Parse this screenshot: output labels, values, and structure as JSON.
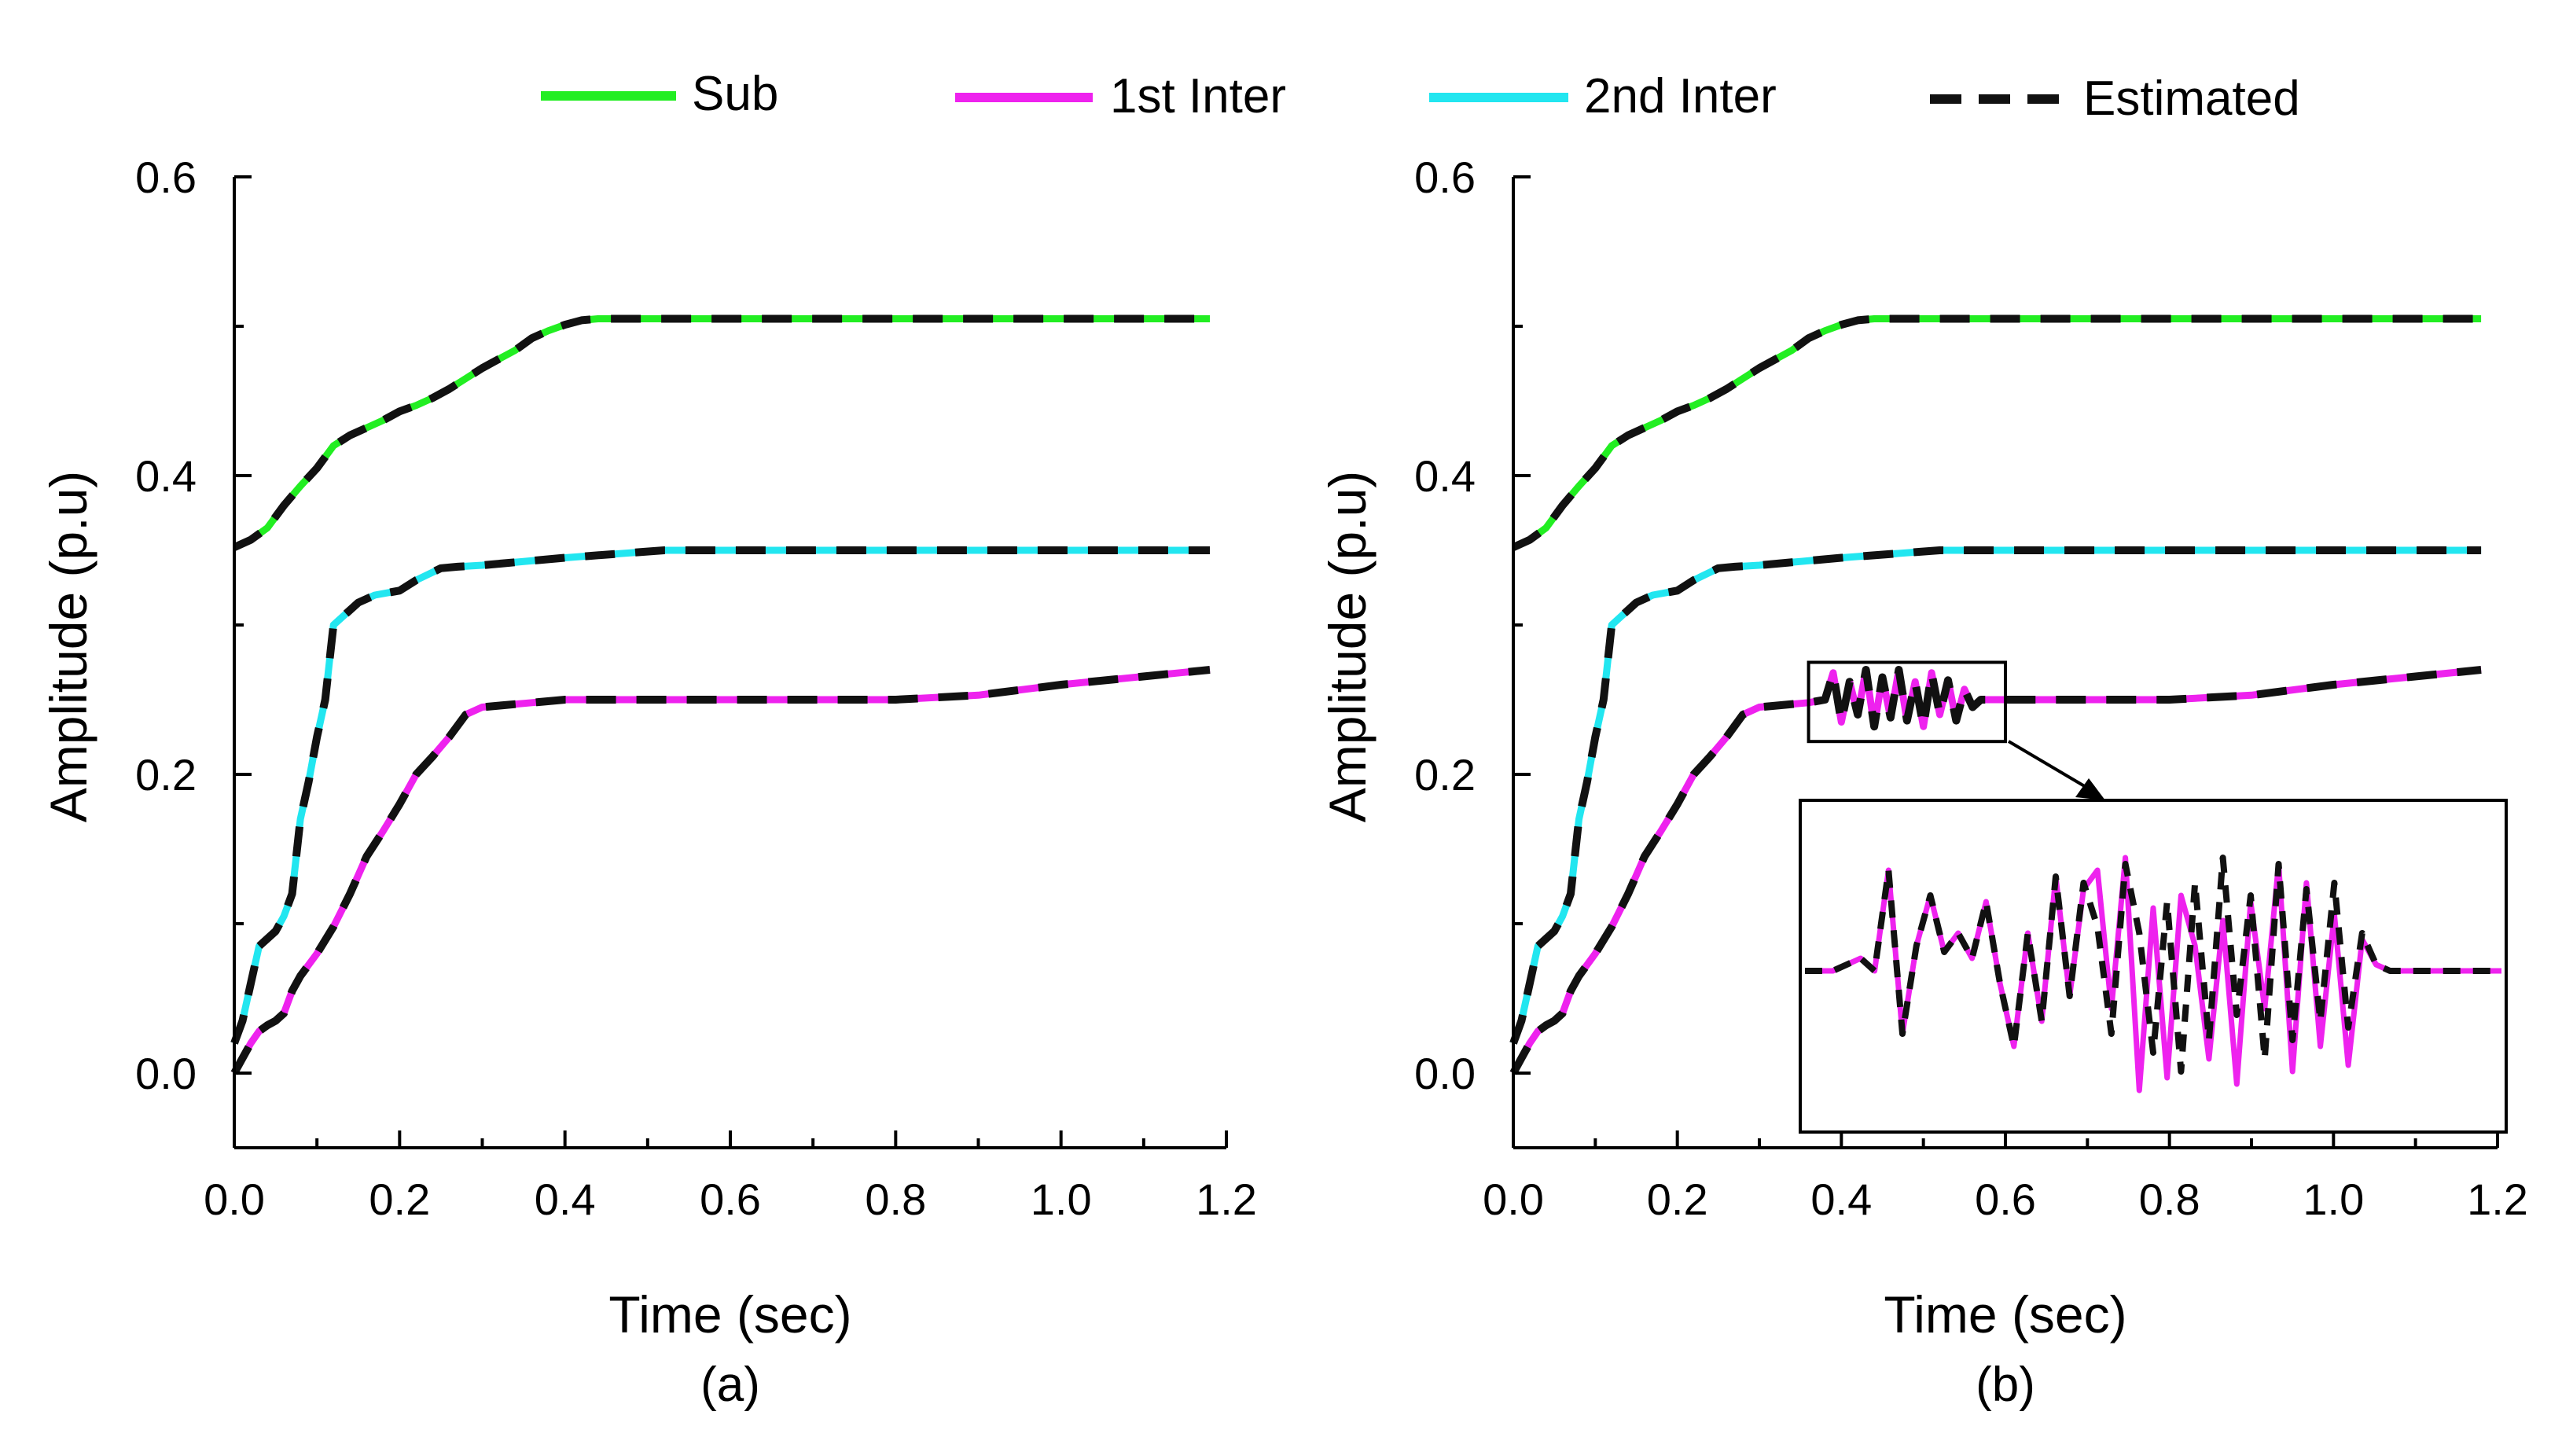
{
  "legend": {
    "items": [
      {
        "label": "Sub",
        "color": "#22ee22",
        "style": "solid"
      },
      {
        "label": "1st Inter",
        "color": "#ee22ee",
        "style": "solid"
      },
      {
        "label": "2nd Inter",
        "color": "#22e6f0",
        "style": "solid"
      },
      {
        "label": "Estimated",
        "color": "#000000",
        "style": "dashed"
      }
    ]
  },
  "colors": {
    "sub": "#22ee22",
    "inter1": "#ee22ee",
    "inter2": "#22e6f0",
    "estimated": "#111111"
  },
  "chart_data": [
    {
      "type": "line",
      "id": "a",
      "caption": "(a)",
      "xlabel": "Time (sec)",
      "ylabel": "Amplitude (p.u)",
      "xlim": [
        0,
        1.2
      ],
      "ylim": [
        -0.05,
        0.6
      ],
      "xticks": [
        "0.0",
        "0.2",
        "0.4",
        "0.6",
        "0.8",
        "1.0",
        "1.2"
      ],
      "yticks": [
        "0.0",
        "0.2",
        "0.4",
        "0.6"
      ],
      "series": [
        {
          "name": "Sub",
          "color": "#22ee22",
          "x": [
            0,
            0.02,
            0.04,
            0.06,
            0.08,
            0.1,
            0.12,
            0.14,
            0.16,
            0.18,
            0.2,
            0.22,
            0.24,
            0.26,
            0.28,
            0.3,
            0.32,
            0.34,
            0.36,
            0.38,
            0.4,
            0.42,
            0.44,
            1.18
          ],
          "y": [
            0.352,
            0.357,
            0.365,
            0.38,
            0.393,
            0.405,
            0.42,
            0.427,
            0.432,
            0.437,
            0.443,
            0.447,
            0.452,
            0.458,
            0.465,
            0.472,
            0.478,
            0.484,
            0.492,
            0.497,
            0.501,
            0.504,
            0.505,
            0.505
          ]
        },
        {
          "name": "2nd Inter",
          "color": "#22e6f0",
          "x": [
            0,
            0.01,
            0.02,
            0.03,
            0.04,
            0.05,
            0.06,
            0.07,
            0.08,
            0.09,
            0.1,
            0.11,
            0.12,
            0.13,
            0.15,
            0.17,
            0.2,
            0.22,
            0.25,
            0.27,
            0.3,
            0.4,
            0.52,
            1.18
          ],
          "y": [
            0.02,
            0.035,
            0.06,
            0.085,
            0.09,
            0.095,
            0.105,
            0.12,
            0.17,
            0.195,
            0.225,
            0.25,
            0.3,
            0.305,
            0.315,
            0.32,
            0.323,
            0.33,
            0.338,
            0.339,
            0.34,
            0.345,
            0.35,
            0.35
          ]
        },
        {
          "name": "1st Inter",
          "color": "#ee22ee",
          "x": [
            0,
            0.01,
            0.02,
            0.03,
            0.04,
            0.05,
            0.06,
            0.07,
            0.08,
            0.1,
            0.12,
            0.14,
            0.16,
            0.18,
            0.2,
            0.22,
            0.24,
            0.26,
            0.28,
            0.3,
            0.32,
            0.36,
            0.4,
            0.55,
            0.8,
            0.9,
            1.0,
            1.18
          ],
          "y": [
            0.0,
            0.01,
            0.02,
            0.028,
            0.032,
            0.035,
            0.04,
            0.055,
            0.065,
            0.08,
            0.098,
            0.12,
            0.145,
            0.162,
            0.18,
            0.2,
            0.212,
            0.225,
            0.24,
            0.245,
            0.246,
            0.248,
            0.25,
            0.25,
            0.25,
            0.253,
            0.26,
            0.27
          ]
        }
      ]
    },
    {
      "type": "line",
      "id": "b",
      "caption": "(b)",
      "xlabel": "Time (sec)",
      "ylabel": "Amplitude (p.u)",
      "xlim": [
        0,
        1.2
      ],
      "ylim": [
        -0.05,
        0.6
      ],
      "xticks": [
        "0.0",
        "0.2",
        "0.4",
        "0.6",
        "0.8",
        "1.0",
        "1.2"
      ],
      "yticks": [
        "0.0",
        "0.2",
        "0.4",
        "0.6"
      ],
      "series": [
        {
          "name": "Sub",
          "color": "#22ee22",
          "x": [
            0,
            0.02,
            0.04,
            0.06,
            0.08,
            0.1,
            0.12,
            0.14,
            0.16,
            0.18,
            0.2,
            0.22,
            0.24,
            0.26,
            0.28,
            0.3,
            0.32,
            0.34,
            0.36,
            0.38,
            0.4,
            0.42,
            0.44,
            1.18
          ],
          "y": [
            0.352,
            0.357,
            0.365,
            0.38,
            0.393,
            0.405,
            0.42,
            0.427,
            0.432,
            0.437,
            0.443,
            0.447,
            0.452,
            0.458,
            0.465,
            0.472,
            0.478,
            0.484,
            0.492,
            0.497,
            0.501,
            0.504,
            0.505,
            0.505
          ]
        },
        {
          "name": "2nd Inter",
          "color": "#22e6f0",
          "x": [
            0,
            0.01,
            0.02,
            0.03,
            0.04,
            0.05,
            0.06,
            0.07,
            0.08,
            0.09,
            0.1,
            0.11,
            0.12,
            0.13,
            0.15,
            0.17,
            0.2,
            0.22,
            0.25,
            0.27,
            0.3,
            0.4,
            0.52,
            1.18
          ],
          "y": [
            0.02,
            0.035,
            0.06,
            0.085,
            0.09,
            0.095,
            0.105,
            0.12,
            0.17,
            0.195,
            0.225,
            0.25,
            0.3,
            0.305,
            0.315,
            0.32,
            0.323,
            0.33,
            0.338,
            0.339,
            0.34,
            0.345,
            0.35,
            0.35
          ]
        },
        {
          "name": "1st Inter",
          "color": "#ee22ee",
          "x": [
            0,
            0.01,
            0.02,
            0.03,
            0.04,
            0.05,
            0.06,
            0.07,
            0.08,
            0.1,
            0.12,
            0.14,
            0.16,
            0.18,
            0.2,
            0.22,
            0.24,
            0.26,
            0.28,
            0.3,
            0.32,
            0.36,
            0.38,
            0.39,
            0.4,
            0.41,
            0.42,
            0.43,
            0.44,
            0.45,
            0.46,
            0.47,
            0.48,
            0.49,
            0.5,
            0.51,
            0.52,
            0.53,
            0.54,
            0.55,
            0.56,
            0.57,
            0.6,
            0.8,
            0.9,
            1.0,
            1.18
          ],
          "y": [
            0.0,
            0.01,
            0.02,
            0.028,
            0.032,
            0.035,
            0.04,
            0.055,
            0.065,
            0.08,
            0.098,
            0.12,
            0.145,
            0.162,
            0.18,
            0.2,
            0.212,
            0.225,
            0.24,
            0.245,
            0.246,
            0.248,
            0.25,
            0.268,
            0.235,
            0.262,
            0.24,
            0.27,
            0.232,
            0.265,
            0.238,
            0.27,
            0.236,
            0.262,
            0.232,
            0.268,
            0.24,
            0.263,
            0.236,
            0.257,
            0.245,
            0.25,
            0.25,
            0.25,
            0.253,
            0.26,
            0.27
          ]
        }
      ]
    }
  ],
  "inset": {
    "name": "1st Inter zoom",
    "x": [
      0,
      1,
      2,
      3,
      4,
      5,
      6,
      7,
      8,
      9,
      10,
      11,
      12,
      13,
      14,
      15,
      16,
      17,
      18,
      19,
      20,
      21,
      22,
      23,
      24,
      25,
      26,
      27,
      28,
      29,
      30,
      31,
      32,
      33,
      34,
      35,
      36,
      37,
      38,
      39,
      40,
      41,
      42,
      43,
      44,
      45,
      46,
      47,
      48,
      49,
      50
    ],
    "true": [
      0,
      0,
      0,
      0.05,
      0.1,
      0,
      0.8,
      -0.5,
      0.2,
      0.6,
      0.15,
      0.3,
      0.1,
      0.55,
      -0.1,
      -0.6,
      0.3,
      -0.4,
      0.75,
      -0.2,
      0.65,
      0.8,
      -0.3,
      0.9,
      -0.95,
      0.5,
      -0.85,
      0.6,
      0.2,
      -0.7,
      0.4,
      -0.9,
      0.55,
      -0.3,
      0.85,
      -0.8,
      0.7,
      -0.6,
      0.45,
      -0.75,
      0.25,
      0.05,
      0,
      0,
      0,
      0,
      0,
      0,
      0,
      0,
      0
    ],
    "estimated": [
      0,
      0,
      0,
      0.05,
      0.1,
      0,
      0.8,
      -0.5,
      0.2,
      0.6,
      0.15,
      0.3,
      0.1,
      0.55,
      -0.1,
      -0.6,
      0.3,
      -0.4,
      0.75,
      -0.2,
      0.7,
      0.35,
      -0.5,
      0.85,
      0.3,
      -0.65,
      0.55,
      -0.8,
      0.7,
      -0.55,
      0.9,
      -0.35,
      0.6,
      -0.7,
      0.85,
      -0.55,
      0.65,
      -0.4,
      0.7,
      -0.45,
      0.3,
      0.05,
      0,
      0,
      0,
      0,
      0,
      0,
      0,
      0,
      0
    ]
  }
}
